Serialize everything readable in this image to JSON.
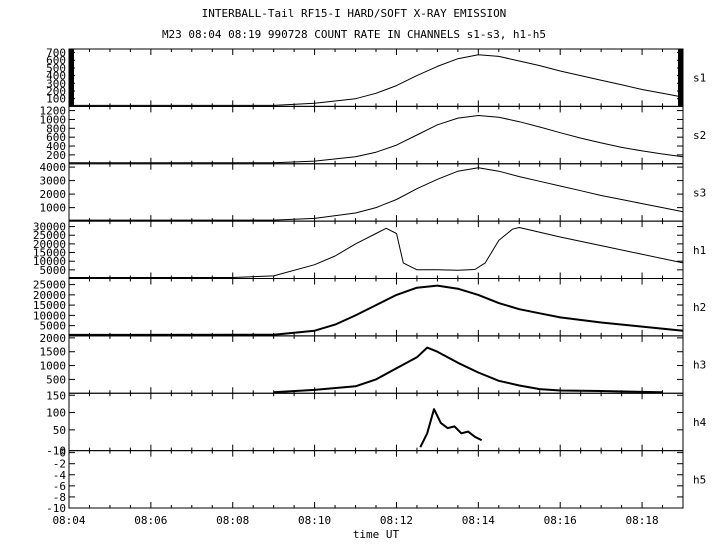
{
  "title": "INTERBALL-Tail RF15-I HARD/SOFT X-RAY EMISSION",
  "subtitle": "M23  08:04 08:19 990728  COUNT RATE IN CHANNELS s1-s3, h1-h5",
  "chart_data": {
    "type": "line",
    "title": "INTERBALL-Tail RF15-I HARD/SOFT X-RAY EMISSION",
    "subtitle": "M23  08:04 08:19 990728  COUNT RATE IN CHANNELS s1-s3, h1-h5",
    "xlabel": "time UT",
    "xlim": [
      "08:04",
      "08:19"
    ],
    "xticks": [
      "08:04",
      "08:06",
      "08:08",
      "08:10",
      "08:12",
      "08:14",
      "08:16",
      "08:18"
    ],
    "grid": false,
    "panels": [
      {
        "name": "s1",
        "ylim": [
          0,
          720
        ],
        "yticks": [
          "100",
          "200",
          "300",
          "400",
          "500",
          "600",
          "700"
        ],
        "x": [
          "08:04",
          "08:09",
          "08:10",
          "08:11",
          "08:11:30",
          "08:12",
          "08:12:30",
          "08:13",
          "08:13:30",
          "08:14",
          "08:14:30",
          "08:15",
          "08:15:30",
          "08:16",
          "08:16:30",
          "08:17",
          "08:17:30",
          "08:18",
          "08:18:30",
          "08:19"
        ],
        "values": [
          0,
          5,
          40,
          100,
          170,
          270,
          400,
          520,
          620,
          670,
          650,
          590,
          530,
          460,
          400,
          340,
          280,
          220,
          170,
          120
        ]
      },
      {
        "name": "s2",
        "ylim": [
          0,
          1250
        ],
        "yticks": [
          "200",
          "400",
          "600",
          "800",
          "1000",
          "1200"
        ],
        "x": [
          "08:04",
          "08:09",
          "08:10",
          "08:11",
          "08:11:30",
          "08:12",
          "08:12:30",
          "08:13",
          "08:13:30",
          "08:14",
          "08:14:30",
          "08:15",
          "08:15:30",
          "08:16",
          "08:16:30",
          "08:17",
          "08:17:30",
          "08:18",
          "08:18:30",
          "08:19"
        ],
        "values": [
          0,
          10,
          60,
          160,
          260,
          420,
          650,
          880,
          1030,
          1090,
          1050,
          950,
          830,
          700,
          580,
          470,
          370,
          290,
          220,
          160
        ]
      },
      {
        "name": "s3",
        "ylim": [
          0,
          4100
        ],
        "yticks": [
          "1000",
          "2000",
          "3000",
          "4000"
        ],
        "x": [
          "08:04",
          "08:09",
          "08:10",
          "08:11",
          "08:11:30",
          "08:12",
          "08:12:30",
          "08:13",
          "08:13:30",
          "08:14",
          "08:14:30",
          "08:15",
          "08:15:30",
          "08:16",
          "08:16:30",
          "08:17",
          "08:17:30",
          "08:18",
          "08:18:30",
          "08:19"
        ],
        "values": [
          0,
          40,
          200,
          600,
          1000,
          1600,
          2400,
          3100,
          3700,
          3950,
          3700,
          3300,
          2950,
          2600,
          2250,
          1900,
          1600,
          1300,
          1000,
          700
        ]
      },
      {
        "name": "h1",
        "ylim": [
          0,
          32000
        ],
        "yticks": [
          "5000",
          "10000",
          "15000",
          "20000",
          "25000",
          "30000"
        ],
        "x": [
          "08:04",
          "08:08",
          "08:09",
          "08:10",
          "08:10:30",
          "08:11",
          "08:11:30",
          "08:11:45",
          "08:12",
          "08:12:10",
          "08:12:30",
          "08:13",
          "08:13:30",
          "08:13:55",
          "08:14:10",
          "08:14:30",
          "08:14:50",
          "08:15",
          "08:16",
          "08:17",
          "08:18",
          "08:19"
        ],
        "values": [
          0,
          300,
          1500,
          8000,
          13000,
          20000,
          26000,
          29000,
          26000,
          9000,
          5000,
          5000,
          4800,
          5200,
          9000,
          22000,
          28500,
          29500,
          24000,
          19000,
          14000,
          9000
        ]
      },
      {
        "name": "h2",
        "ylim": [
          0,
          27000
        ],
        "yticks": [
          "5000",
          "10000",
          "15000",
          "20000",
          "25000"
        ],
        "x": [
          "08:04",
          "08:09",
          "08:10",
          "08:10:30",
          "08:11",
          "08:11:30",
          "08:12",
          "08:12:30",
          "08:13",
          "08:13:30",
          "08:14",
          "08:14:30",
          "08:15",
          "08:15:30",
          "08:16",
          "08:17",
          "08:18",
          "08:19"
        ],
        "values": [
          0,
          500,
          2500,
          5500,
          10000,
          15000,
          20000,
          23500,
          24500,
          23000,
          20000,
          16000,
          13000,
          11000,
          9000,
          6500,
          4500,
          2500
        ]
      },
      {
        "name": "h3",
        "ylim": [
          0,
          2000
        ],
        "yticks": [
          "500",
          "1000",
          "1500",
          "2000"
        ],
        "x": [
          "08:09",
          "08:10",
          "08:11",
          "08:11:30",
          "08:12",
          "08:12:30",
          "08:12:45",
          "08:13",
          "08:13:30",
          "08:14",
          "08:14:30",
          "08:15",
          "08:15:30",
          "08:16",
          "08:17",
          "08:18",
          "08:18:30"
        ],
        "values": [
          0,
          120,
          250,
          500,
          900,
          1300,
          1650,
          1500,
          1100,
          750,
          450,
          280,
          150,
          100,
          80,
          50,
          10
        ]
      },
      {
        "name": "h4",
        "ylim": [
          -10,
          150
        ],
        "yticks": [
          "-10",
          "50",
          "100",
          "150"
        ],
        "x": [
          "08:12:35",
          "08:12:45",
          "08:12:55",
          "08:13:05",
          "08:13:15",
          "08:13:25",
          "08:13:35",
          "08:13:45",
          "08:13:55",
          "08:14:05"
        ],
        "values": [
          0,
          40,
          110,
          70,
          55,
          60,
          40,
          45,
          30,
          20
        ]
      },
      {
        "name": "h5",
        "ylim": [
          -10,
          0
        ],
        "yticks": [
          "-10",
          "-8",
          "-6",
          "-4",
          "-2",
          "0"
        ],
        "x": [],
        "values": []
      }
    ]
  }
}
